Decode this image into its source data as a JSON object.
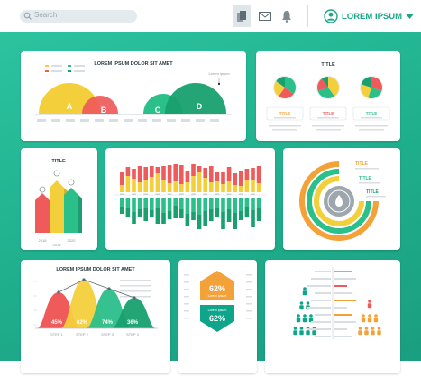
{
  "header": {
    "search_placeholder": "Search",
    "user_name": "LOREM IPSUM",
    "icons": [
      "search-icon",
      "document-icon",
      "mail-icon",
      "bell-icon",
      "user-avatar-icon",
      "chevron-down-icon"
    ]
  },
  "colors": {
    "accent": "#1fae8c",
    "yellow": "#f4cf3c",
    "red": "#ef5a5a",
    "green": "#2bbf8a",
    "dark_green": "#18a06e",
    "orange": "#f3a23a",
    "teal": "#0fa58a"
  },
  "card1": {
    "title": "LOREM IPSUM DOLOR SIT AMET",
    "callout": "Lorem ipsum",
    "circles": [
      "A",
      "B",
      "C",
      "D"
    ]
  },
  "card2": {
    "title": "TITLE",
    "labels": [
      "TITLE",
      "TITLE",
      "TITLE"
    ]
  },
  "card3": {
    "title": "TITLE",
    "xlabels": [
      "2018",
      "2019",
      "2020"
    ]
  },
  "card5": {
    "labels": [
      "TITLE",
      "TITLE",
      "TITLE"
    ]
  },
  "card6": {
    "title": "LOREM IPSUM DOLOR SIT AMET",
    "peaks": [
      "45%",
      "62%",
      "74%",
      "36%"
    ],
    "steps": [
      "STEP 1",
      "STEP 2",
      "STEP 3",
      "STEP 4"
    ]
  },
  "card7": {
    "top_value": "62%",
    "bottom_value": "62%",
    "top_caption": "Lorem ipsum",
    "bottom_caption": "Lorem ipsum"
  },
  "chart_data": [
    {
      "type": "bar",
      "title": "",
      "series": [
        {
          "name": "",
          "color": "#f4cf3c",
          "values": [
            8,
            18,
            15,
            11,
            13,
            17,
            21,
            13,
            10,
            12,
            9,
            11,
            18,
            22,
            16,
            11,
            12,
            9,
            12,
            8,
            7,
            14,
            14,
            10
          ]
        },
        {
          "name": "",
          "color": "#ef5a5a",
          "values": [
            14,
            10,
            11,
            18,
            15,
            12,
            7,
            16,
            20,
            19,
            21,
            13,
            13,
            7,
            11,
            18,
            10,
            13,
            16,
            13,
            16,
            12,
            13,
            19
          ]
        },
        {
          "name": "",
          "color": "#2bbf8a",
          "values": [
            10,
            12,
            16,
            13,
            12,
            14,
            12,
            17,
            15,
            9,
            13,
            18,
            16,
            19,
            15,
            13,
            12,
            16,
            13,
            17,
            15,
            11,
            14,
            12
          ]
        },
        {
          "name": "",
          "color": "#18a06e",
          "values": [
            8,
            10,
            13,
            9,
            14,
            7,
            17,
            12,
            9,
            14,
            10,
            13,
            9,
            16,
            17,
            13,
            9,
            19,
            14,
            18,
            10,
            11,
            19,
            14
          ]
        }
      ]
    },
    {
      "type": "pie",
      "title": "TITLE",
      "charts": [
        {
          "values": [
            35,
            25,
            25,
            15
          ],
          "colors": [
            "#2bbf8a",
            "#ef5a5a",
            "#f4cf3c",
            "#18a06e"
          ]
        },
        {
          "values": [
            40,
            30,
            20,
            10
          ],
          "colors": [
            "#f4cf3c",
            "#2bbf8a",
            "#ef5a5a",
            "#18a06e"
          ]
        },
        {
          "values": [
            30,
            25,
            25,
            20
          ],
          "colors": [
            "#ef5a5a",
            "#2bbf8a",
            "#f4cf3c",
            "#18a06e"
          ]
        }
      ]
    }
  ]
}
